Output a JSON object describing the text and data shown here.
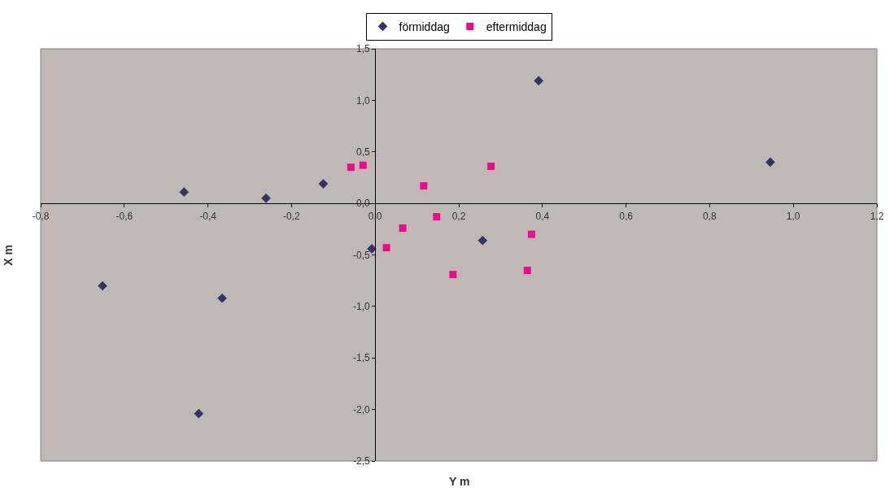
{
  "chart_data": {
    "type": "scatter",
    "xlabel": "Y m",
    "ylabel": "X m",
    "legend": "top",
    "grid": false,
    "xlim": [
      -0.8,
      1.2
    ],
    "ylim": [
      -2.5,
      1.5
    ],
    "xticks": [
      {
        "value": -0.8,
        "label": "-0,8"
      },
      {
        "value": -0.6,
        "label": "-0,6"
      },
      {
        "value": -0.4,
        "label": "-0,4"
      },
      {
        "value": -0.2,
        "label": "-0,2"
      },
      {
        "value": 0,
        "label": "0,0"
      },
      {
        "value": 0.2,
        "label": "0,2"
      },
      {
        "value": 0.4,
        "label": "0,4"
      },
      {
        "value": 0.6,
        "label": "0,6"
      },
      {
        "value": 0.8,
        "label": "0,8"
      },
      {
        "value": 1.0,
        "label": "1,0"
      },
      {
        "value": 1.2,
        "label": "1,2"
      }
    ],
    "yticks": [
      {
        "value": 1.5,
        "label": "1,5"
      },
      {
        "value": 1.0,
        "label": "1,0"
      },
      {
        "value": 0.5,
        "label": "0,5"
      },
      {
        "value": 0,
        "label": "0,0"
      },
      {
        "value": -0.5,
        "label": "-0,5"
      },
      {
        "value": -1.0,
        "label": "-1,0"
      },
      {
        "value": -1.5,
        "label": "-1,5"
      },
      {
        "value": -2.0,
        "label": "-2,0"
      },
      {
        "value": -2.5,
        "label": "-2,5"
      }
    ],
    "series": [
      {
        "name": "förmiddag",
        "color": "#333366",
        "marker": "diamond",
        "x": [
          -0.652,
          -0.457,
          -0.366,
          -0.422,
          -0.261,
          -0.124,
          -0.008,
          0.257,
          0.391,
          0.945
        ],
        "values": [
          -0.8,
          0.11,
          -0.92,
          -2.04,
          0.05,
          0.19,
          -0.44,
          -0.36,
          1.19,
          0.4
        ]
      },
      {
        "name": "eftermiddag",
        "color": "#ee0a8c",
        "marker": "square",
        "x": [
          -0.058,
          -0.029,
          0.027,
          0.066,
          0.116,
          0.147,
          0.186,
          0.277,
          0.364,
          0.374
        ],
        "values": [
          0.35,
          0.37,
          -0.43,
          -0.24,
          0.17,
          -0.13,
          -0.69,
          0.36,
          -0.65,
          -0.3
        ]
      }
    ]
  }
}
